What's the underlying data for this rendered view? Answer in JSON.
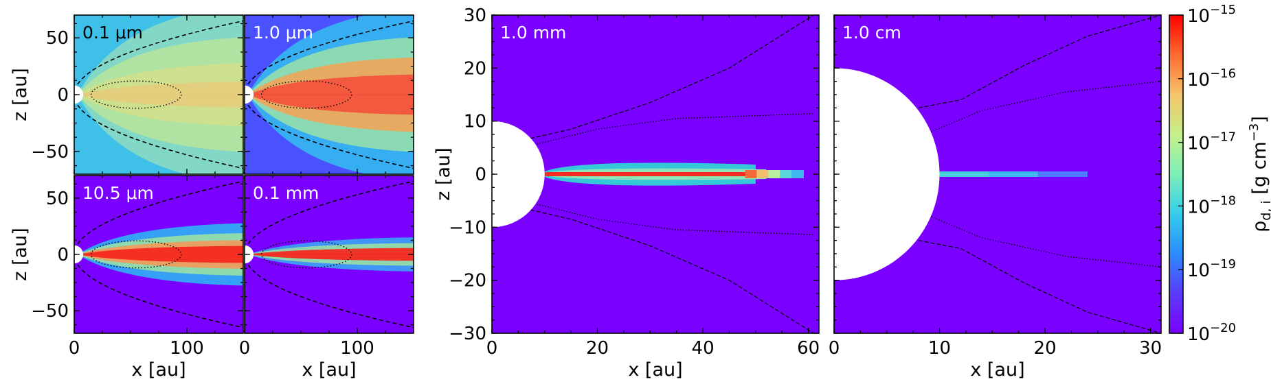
{
  "chart_data": [
    {
      "type": "heatmap",
      "label": "0.1 μm",
      "label_color": "#000000",
      "xlim": [
        0,
        150
      ],
      "ylim": [
        -70,
        70
      ],
      "xticks": [
        0,
        100
      ],
      "yticks": [
        -50,
        0,
        50
      ],
      "xlabel": "",
      "ylabel": "z [au]",
      "sink_radius": 3,
      "dotted_ellipse": {
        "cx": 55,
        "rx": 40,
        "ry": 12
      },
      "dashed_slope": 0.42,
      "background": "#3fc0e8",
      "plumes": [
        {
          "color": "#8ad9c2",
          "opacity": 0.9,
          "spread": 0.62
        },
        {
          "color": "#b9e49b",
          "opacity": 0.85,
          "spread": 0.4
        },
        {
          "color": "#d4e08a",
          "opacity": 0.8,
          "spread": 0.22
        },
        {
          "color": "#e8c97a",
          "opacity": 0.8,
          "spread": 0.09
        }
      ]
    },
    {
      "type": "heatmap",
      "label": "1.0 μm",
      "label_color": "#ffffff",
      "xlim": [
        0,
        150
      ],
      "ylim": [
        -70,
        70
      ],
      "xticks": [
        0,
        100
      ],
      "yticks": [
        -50,
        0,
        50
      ],
      "xlabel": "",
      "ylabel": "",
      "sink_radius": 3,
      "dotted_ellipse": {
        "cx": 55,
        "rx": 40,
        "ry": 12
      },
      "dashed_slope": 0.42,
      "background": "#4a52ff",
      "plumes": [
        {
          "color": "#35b8f0",
          "opacity": 0.9,
          "spread": 0.6
        },
        {
          "color": "#9be2a8",
          "opacity": 0.85,
          "spread": 0.4
        },
        {
          "color": "#f0a55a",
          "opacity": 0.9,
          "spread": 0.26
        },
        {
          "color": "#f4503a",
          "opacity": 0.9,
          "spread": 0.14
        }
      ]
    },
    {
      "type": "heatmap",
      "label": "10.5 μm",
      "label_color": "#ffffff",
      "xlim": [
        0,
        150
      ],
      "ylim": [
        -70,
        70
      ],
      "xticks": [
        0,
        100
      ],
      "yticks": [
        -50,
        0,
        50
      ],
      "xlabel": "x [au]",
      "ylabel": "z [au]",
      "sink_radius": 3,
      "dotted_ellipse": {
        "cx": 55,
        "rx": 40,
        "ry": 12
      },
      "dashed_slope": 0.42,
      "background": "#7a00ff",
      "plumes": [
        {
          "color": "#2fb0f5",
          "opacity": 0.9,
          "spread": 0.22
        },
        {
          "color": "#9ee3a0",
          "opacity": 0.85,
          "spread": 0.15
        },
        {
          "color": "#f29a5a",
          "opacity": 0.9,
          "spread": 0.1
        },
        {
          "color": "#f52a20",
          "opacity": 0.95,
          "spread": 0.06
        }
      ]
    },
    {
      "type": "heatmap",
      "label": "0.1 mm",
      "label_color": "#ffffff",
      "xlim": [
        0,
        150
      ],
      "ylim": [
        -70,
        70
      ],
      "xticks": [
        0,
        100
      ],
      "yticks": [
        -50,
        0,
        50
      ],
      "xlabel": "x [au]",
      "ylabel": "",
      "sink_radius": 3,
      "dotted_ellipse": {
        "cx": 55,
        "rx": 40,
        "ry": 12
      },
      "dashed_slope": 0.42,
      "background": "#7a00ff",
      "plumes": [
        {
          "color": "#3aa6f5",
          "opacity": 0.9,
          "spread": 0.12
        },
        {
          "color": "#a0e3a0",
          "opacity": 0.85,
          "spread": 0.08
        },
        {
          "color": "#f52a20",
          "opacity": 0.95,
          "spread": 0.045
        }
      ]
    },
    {
      "type": "heatmap",
      "label": "1.0 mm",
      "label_color": "#ffffff",
      "xlim": [
        0,
        62
      ],
      "ylim": [
        -30,
        30
      ],
      "xticks": [
        0,
        20,
        40,
        60
      ],
      "yticks": [
        -30,
        -20,
        -10,
        0,
        10,
        20,
        30
      ],
      "xlabel": "x [au]",
      "ylabel": "z [au]",
      "sink_radius": 10,
      "background": "#7a00ff",
      "boundary_lines": [
        {
          "style": "dashed",
          "points": [
            [
              5,
              6.2
            ],
            [
              15,
              8.5
            ],
            [
              30,
              13.5
            ],
            [
              45,
              20
            ],
            [
              61,
              30
            ]
          ]
        },
        {
          "style": "dotted",
          "points": [
            [
              5,
              4.8
            ],
            [
              20,
              8.5
            ],
            [
              35,
              10.5
            ],
            [
              61,
              11.4
            ]
          ]
        }
      ],
      "layer_colors": [
        "#35c8d8",
        "#8ee3b8",
        "#f52a20"
      ]
    },
    {
      "type": "heatmap",
      "label": "1.0 cm",
      "label_color": "#ffffff",
      "xlim": [
        0,
        31
      ],
      "ylim": [
        -30,
        30
      ],
      "xticks": [
        0,
        10,
        20,
        30
      ],
      "yticks": [
        -30,
        -20,
        -10,
        0,
        10,
        20,
        30
      ],
      "xlabel": "x [au]",
      "ylabel": "",
      "sink_radius": 10,
      "sink_radius_y": 20,
      "background": "#7a00ff",
      "boundary_lines": [
        {
          "style": "dashed",
          "points": [
            [
              8,
              12.5
            ],
            [
              12,
              14
            ],
            [
              18,
              20.5
            ],
            [
              24,
              26
            ],
            [
              31,
              30
            ]
          ]
        },
        {
          "style": "dotted",
          "points": [
            [
              8,
              7
            ],
            [
              14,
              12
            ],
            [
              22,
              15.5
            ],
            [
              31,
              17.5
            ]
          ]
        }
      ],
      "streak": {
        "x0": 10,
        "x1": 24,
        "colors": [
          "#45d0d8",
          "#3fb8f0",
          "#4a7dff"
        ]
      }
    }
  ],
  "colorbar": {
    "label_prefix": "ρ",
    "label_sub": "d, i",
    "label_suffix": " [g cm",
    "label_exp": "−3",
    "label_close": "]",
    "tick_exponents": [
      "−15",
      "−16",
      "−17",
      "−18",
      "−19",
      "−20"
    ],
    "tick_base": "10",
    "stops": [
      "#ff0000",
      "#ff6a2f",
      "#f4c56a",
      "#c4f08a",
      "#7ef0b8",
      "#33cdea",
      "#2b8cff",
      "#5a3cff",
      "#7a00ff"
    ]
  }
}
